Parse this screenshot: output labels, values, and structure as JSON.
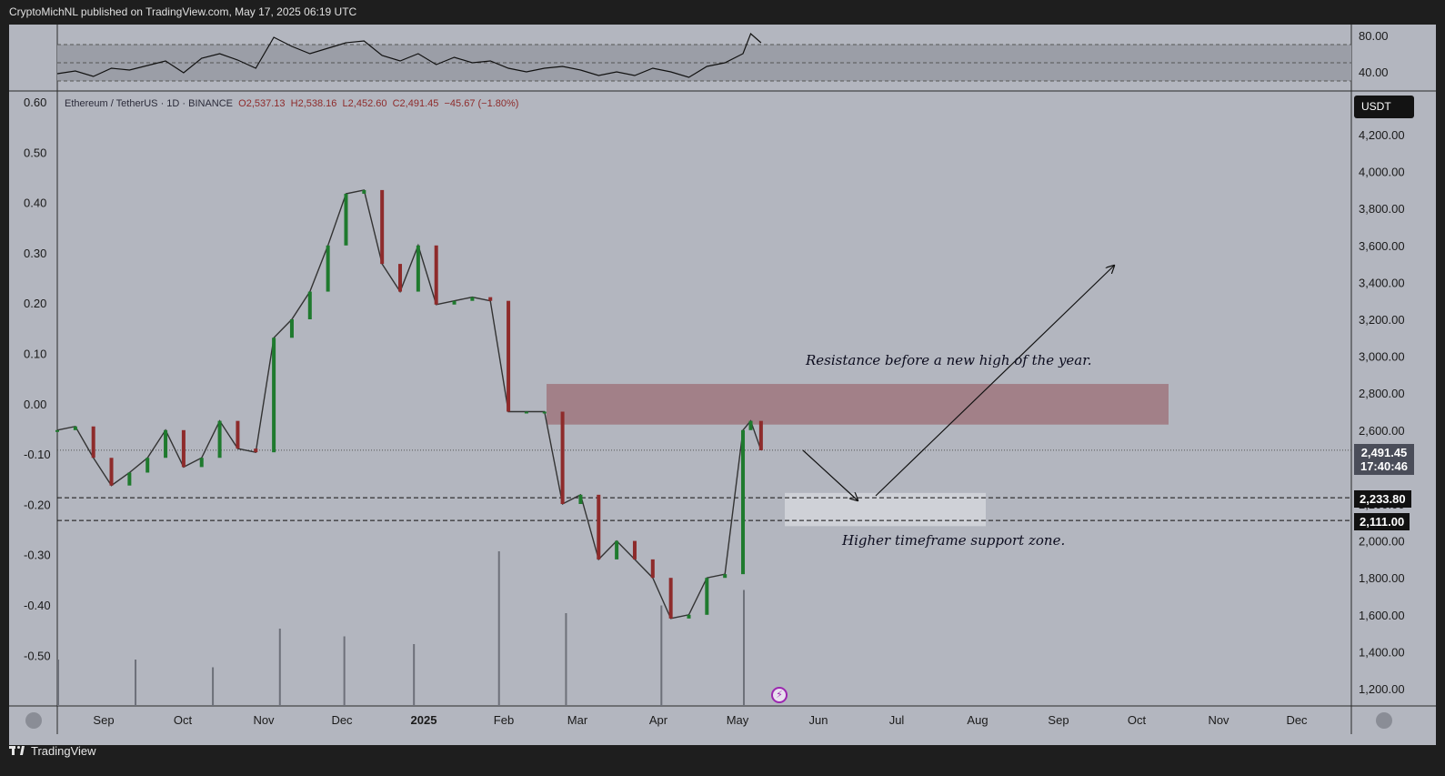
{
  "header": {
    "publisher_text": "CryptoMichNL published on TradingView.com, May 17, 2025 06:19 UTC"
  },
  "footer": {
    "brand": "TradingView"
  },
  "legend": {
    "symbol": "Ethereum / TetherUS · 1D · BINANCE",
    "open": "O2,537.13",
    "high": "H2,538.16",
    "low": "L2,452.60",
    "close": "C2,491.45",
    "change": "−45.67 (−1.80%)"
  },
  "currency_badge": "USDT",
  "current_price": {
    "price": "2,491.45",
    "countdown": "17:40:46"
  },
  "levels": [
    {
      "label": "2,233.80",
      "value": 2233.8
    },
    {
      "label": "2,111.00",
      "value": 2111.0
    }
  ],
  "annotations": {
    "resistance": "Resistance before a new high of the year.",
    "support": "Higher timeframe support zone."
  },
  "colors": {
    "background": "#b3b6bf",
    "up": "#1f7a2e",
    "down": "#8e2b2b",
    "resistance_zone": "#a07a82",
    "support_zone": "#d2d4d9"
  },
  "chart_data": [
    {
      "type": "line",
      "title": "",
      "panel": "oscillator",
      "y_ticks": [
        "80.00",
        "40.00"
      ],
      "ylim": [
        20,
        90
      ],
      "levels": [
        70,
        50,
        30
      ],
      "x": [
        "2024-08-16",
        "2024-08-23",
        "2024-08-30",
        "2024-09-06",
        "2024-09-13",
        "2024-09-20",
        "2024-09-27",
        "2024-10-04",
        "2024-10-11",
        "2024-10-18",
        "2024-10-25",
        "2024-11-01",
        "2024-11-08",
        "2024-11-15",
        "2024-11-22",
        "2024-11-29",
        "2024-12-06",
        "2024-12-13",
        "2024-12-20",
        "2024-12-27",
        "2025-01-03",
        "2025-01-10",
        "2025-01-17",
        "2025-01-24",
        "2025-01-31",
        "2025-02-07",
        "2025-02-14",
        "2025-02-21",
        "2025-02-28",
        "2025-03-07",
        "2025-03-14",
        "2025-03-21",
        "2025-03-28",
        "2025-04-04",
        "2025-04-11",
        "2025-04-18",
        "2025-04-25",
        "2025-05-02",
        "2025-05-09",
        "2025-05-12",
        "2025-05-16"
      ],
      "values": [
        38,
        41,
        35,
        44,
        42,
        47,
        52,
        39,
        55,
        60,
        53,
        44,
        78,
        68,
        60,
        66,
        72,
        74,
        58,
        52,
        60,
        48,
        56,
        50,
        52,
        44,
        40,
        44,
        46,
        42,
        36,
        40,
        36,
        44,
        40,
        34,
        46,
        50,
        60,
        82,
        72
      ]
    },
    {
      "type": "candlestick",
      "title": "",
      "panel": "price",
      "right_axis_ticks": [
        "4,200.00",
        "4,000.00",
        "3,800.00",
        "3,600.00",
        "3,400.00",
        "3,200.00",
        "3,000.00",
        "2,800.00",
        "2,600.00",
        "2,400.00",
        "2,200.00",
        "2,000.00",
        "1,800.00",
        "1,600.00",
        "1,400.00",
        "1,200.00"
      ],
      "left_axis_ticks": [
        "0.60",
        "0.50",
        "0.40",
        "0.30",
        "0.20",
        "0.10",
        "0.00",
        "-0.10",
        "-0.20",
        "-0.30",
        "-0.40",
        "-0.50"
      ],
      "x_ticks": [
        "Sep",
        "Oct",
        "Nov",
        "Dec",
        "2025",
        "Feb",
        "Mar",
        "Apr",
        "May",
        "Jun",
        "Jul",
        "Aug",
        "Sep",
        "Oct",
        "Nov",
        "Dec"
      ],
      "ylim": [
        1150,
        4300
      ],
      "xlim": [
        "2024-08-16",
        "2025-12-31"
      ],
      "x": [
        "2024-08-16",
        "2024-08-23",
        "2024-08-30",
        "2024-09-06",
        "2024-09-13",
        "2024-09-20",
        "2024-09-27",
        "2024-10-04",
        "2024-10-11",
        "2024-10-18",
        "2024-10-25",
        "2024-11-01",
        "2024-11-08",
        "2024-11-15",
        "2024-11-22",
        "2024-11-29",
        "2024-12-06",
        "2024-12-13",
        "2024-12-20",
        "2024-12-27",
        "2025-01-03",
        "2025-01-10",
        "2025-01-17",
        "2025-01-24",
        "2025-01-31",
        "2025-02-07",
        "2025-02-14",
        "2025-02-21",
        "2025-02-28",
        "2025-03-07",
        "2025-03-14",
        "2025-03-21",
        "2025-03-28",
        "2025-04-04",
        "2025-04-11",
        "2025-04-18",
        "2025-04-25",
        "2025-05-02",
        "2025-05-09",
        "2025-05-12",
        "2025-05-16"
      ],
      "close": [
        2600,
        2620,
        2450,
        2300,
        2370,
        2450,
        2600,
        2400,
        2450,
        2650,
        2500,
        2480,
        3100,
        3200,
        3350,
        3600,
        3880,
        3900,
        3500,
        3350,
        3600,
        3280,
        3300,
        3320,
        3300,
        2700,
        2700,
        2700,
        2200,
        2250,
        1900,
        2000,
        1900,
        1800,
        1580,
        1600,
        1800,
        1820,
        2600,
        2650,
        2491
      ]
    },
    {
      "type": "bar",
      "title": "",
      "panel": "volume",
      "x": [
        "2024-08-16",
        "2024-09-15",
        "2024-10-15",
        "2024-11-10",
        "2024-12-05",
        "2025-01-01",
        "2025-02-03",
        "2025-03-01",
        "2025-04-07",
        "2025-05-09"
      ],
      "values": [
        0.3,
        0.3,
        0.25,
        0.5,
        0.45,
        0.4,
        1.0,
        0.6,
        0.65,
        0.75
      ]
    }
  ]
}
